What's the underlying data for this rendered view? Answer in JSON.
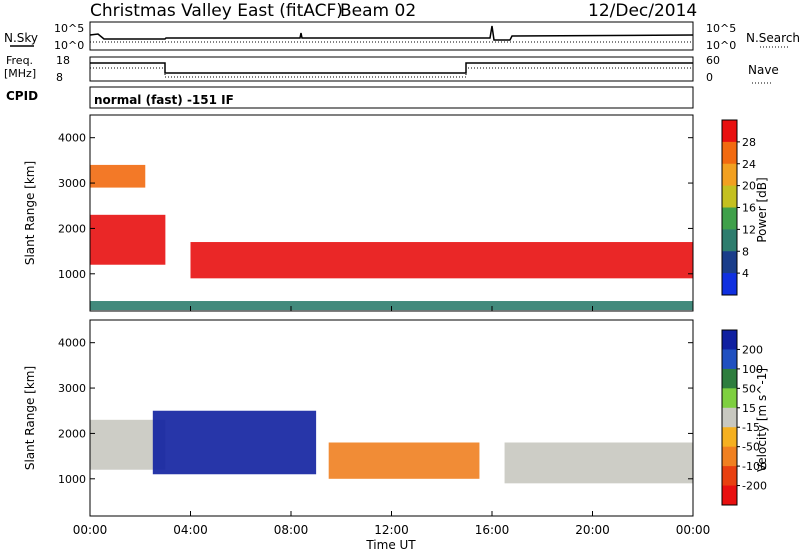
{
  "header": {
    "station": "Christmas Valley East (fitACF)",
    "beam": "Beam 02",
    "date": "12/Dec/2014"
  },
  "top_panels": {
    "nsky_label": "N.Sky",
    "nsearch_label": "N.Search",
    "nsky_ticks": [
      "10^5",
      "10^0"
    ],
    "nsearch_ticks": [
      "10^5",
      "10^0"
    ],
    "freq_label": "Freq.",
    "freq_unit": "[MHz]",
    "freq_ticks": [
      "18",
      "8"
    ],
    "nave_label": "Nave",
    "nave_ticks": [
      "60",
      "0"
    ],
    "cpid_label": "CPID",
    "cpid_value": "normal (fast) -151 IF"
  },
  "axes": {
    "ylabel": "Slant Range [km]",
    "xlabel": "Time UT",
    "x_ticks": [
      "00:00",
      "04:00",
      "08:00",
      "12:00",
      "16:00",
      "20:00",
      "00:00"
    ],
    "y_ticks": [
      "4000",
      "3000",
      "2000",
      "1000"
    ]
  },
  "chart_data": [
    {
      "type": "heatmap",
      "title": "",
      "quantity": "Power",
      "colorbar_label": "Power [dB]",
      "colorbar_ticks": [
        "28",
        "24",
        "20",
        "16",
        "12",
        "8",
        "4"
      ],
      "colors": [
        "#1030e0",
        "#1a3d8a",
        "#2e7d6e",
        "#3fa04a",
        "#c4c020",
        "#f2a020",
        "#f26a10",
        "#e81010"
      ],
      "xlabel": "Time UT",
      "ylabel": "Slant Range [km]",
      "xlim_hours": [
        0,
        24
      ],
      "ylim_km": [
        180,
        4500
      ],
      "features": [
        {
          "name": "main band",
          "t_start": 4.0,
          "t_end": 24.0,
          "range_km": [
            900,
            1700
          ],
          "power_db": 28
        },
        {
          "name": "early band",
          "t_start": 0.0,
          "t_end": 3.0,
          "range_km": [
            1200,
            2300
          ],
          "power_db": 26
        },
        {
          "name": "upper band",
          "t_start": 0.0,
          "t_end": 2.2,
          "range_km": [
            2900,
            3400
          ],
          "power_db": 24
        },
        {
          "name": "ground scatter strip",
          "t_start": 0.0,
          "t_end": 24.0,
          "range_km": [
            200,
            400
          ],
          "power_db": 8
        }
      ]
    },
    {
      "type": "heatmap",
      "title": "",
      "quantity": "Velocity",
      "colorbar_label": "Velocity [m s^-1]",
      "colorbar_ticks": [
        "200",
        "100",
        "50",
        "15",
        "-15",
        "-50",
        "-100",
        "-200"
      ],
      "colors": [
        "#1020a0",
        "#2050c0",
        "#2e7d3e",
        "#7ecf40",
        "#c8c8c0",
        "#f5b020",
        "#f08020",
        "#e84010",
        "#e81010"
      ],
      "xlabel": "Time UT",
      "ylabel": "Slant Range [km]",
      "xlim_hours": [
        0,
        24
      ],
      "ylim_km": [
        180,
        4500
      ],
      "features": [
        {
          "name": "ground scatter night",
          "t_start": 16.5,
          "t_end": 24.0,
          "range_km": [
            900,
            1800
          ],
          "velocity": 0
        },
        {
          "name": "ground scatter early",
          "t_start": 0.0,
          "t_end": 3.0,
          "range_km": [
            1200,
            2300
          ],
          "velocity": 0
        },
        {
          "name": "blue band",
          "t_start": 2.5,
          "t_end": 9.0,
          "range_km": [
            1100,
            2500
          ],
          "velocity": 150
        },
        {
          "name": "orange band",
          "t_start": 9.5,
          "t_end": 15.5,
          "range_km": [
            1000,
            1800
          ],
          "velocity": -60
        }
      ]
    }
  ]
}
